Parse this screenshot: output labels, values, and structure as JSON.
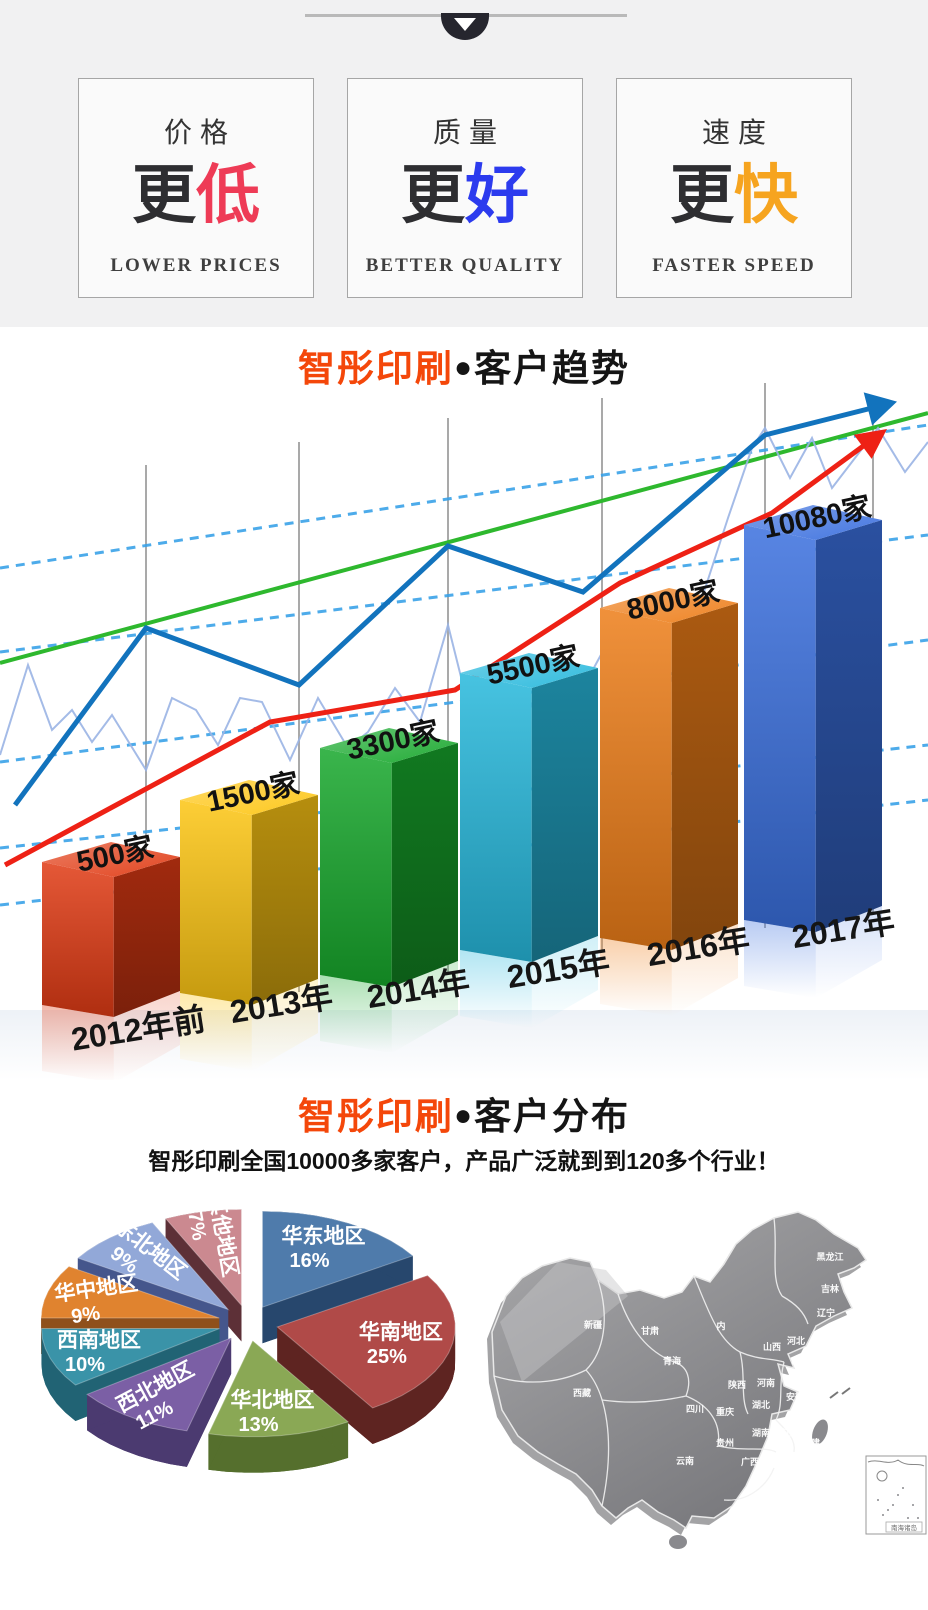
{
  "page": {
    "banner_background": "#f1f1f2",
    "background": "#ffffff"
  },
  "header": {
    "divider_icon": "chevron-down-icon",
    "cards": [
      {
        "title": "价格",
        "lead": "更",
        "emphasis": "低",
        "emphasis_color": "#ee3b56",
        "subtitle": "LOWER PRICES"
      },
      {
        "title": "质量",
        "lead": "更",
        "emphasis": "好",
        "emphasis_color": "#2c3bee",
        "subtitle": "BETTER QUALITY"
      },
      {
        "title": "速度",
        "lead": "更",
        "emphasis": "快",
        "emphasis_color": "#f6a41f",
        "subtitle": "FASTER SPEED"
      }
    ]
  },
  "trend_section": {
    "title": {
      "brand": "智彤印刷",
      "dot": "●",
      "rest": "客户趋势",
      "brand_color": "#f4470a"
    },
    "chart_data": {
      "type": "bar",
      "title": "智彤印刷●客户趋势",
      "categories": [
        "2012年前",
        "2013年",
        "2014年",
        "2015年",
        "2016年",
        "2017年"
      ],
      "values": [
        500,
        1500,
        3300,
        5500,
        8000,
        10080
      ],
      "value_labels": [
        "500家",
        "1500家",
        "3300家",
        "5500家",
        "8000家",
        "10080家"
      ],
      "bar_colors": [
        "#e03b14",
        "#fdc513",
        "#17a82c",
        "#27b8dc",
        "#ed7d18",
        "#3a6fde"
      ],
      "xlabel": "",
      "ylabel": "",
      "legend": "none",
      "grid": "vertical gray lines with dashed blue guides and green/blue/red trend arrows"
    }
  },
  "distribution_section": {
    "title": {
      "brand": "智彤印刷",
      "dot": "●",
      "rest": "客户分布",
      "brand_color": "#f4470a"
    },
    "subtitle": "智彤印刷全国10000多家客户，产品广泛就到到120多个行业！",
    "chart_data": {
      "type": "pie",
      "title": "智彤印刷●客户分布",
      "slices": [
        {
          "label": "华东地区",
          "value": 16,
          "color": "#4f7bab",
          "side_color": "#27476d"
        },
        {
          "label": "华南地区",
          "value": 25,
          "color": "#b04a48",
          "side_color": "#5e2421"
        },
        {
          "label": "华北地区",
          "value": 13,
          "color": "#8aa855",
          "side_color": "#556f2d"
        },
        {
          "label": "西北地区",
          "value": 11,
          "color": "#7b5fa5",
          "side_color": "#4b3a70"
        },
        {
          "label": "西南地区",
          "value": 10,
          "color": "#3a93a8",
          "side_color": "#216374"
        },
        {
          "label": "华中地区",
          "value": 9,
          "color": "#e0832f",
          "side_color": "#8f501b"
        },
        {
          "label": "东北地区",
          "value": 9,
          "color": "#92a8d8",
          "side_color": "#45568c"
        },
        {
          "label": "其他地区",
          "value": 7,
          "color": "#cb8990",
          "side_color": "#5d3037"
        }
      ],
      "legend_position": "labels-on-slices"
    },
    "map": {
      "name": "china-map",
      "inset_label": "南海诸岛",
      "province_labels": [
        "黑龙江",
        "吉林",
        "辽宁",
        "河北",
        "山西",
        "山东",
        "江苏",
        "安徽",
        "浙江",
        "福建",
        "江西",
        "湖南",
        "湖北",
        "河南",
        "陕西",
        "重庆",
        "贵州",
        "广西",
        "广东",
        "云南",
        "四川",
        "青海",
        "甘肃",
        "新疆",
        "西藏",
        "内"
      ]
    }
  }
}
